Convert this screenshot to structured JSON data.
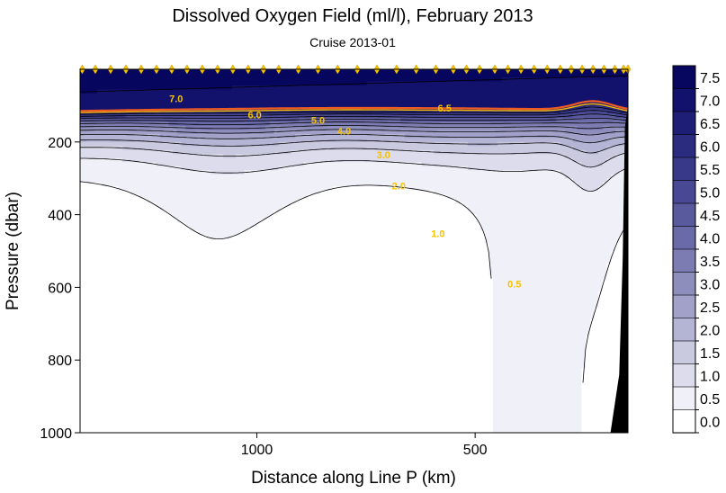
{
  "chart_data": {
    "type": "heatmap",
    "title": "Dissolved Oxygen Field  (ml/l),  February 2013",
    "subtitle": "Cruise 2013-01",
    "xlabel": "Distance along Line P  (km)",
    "ylabel": "Pressure  (dbar)",
    "x_axis": {
      "reversed": true,
      "range": [
        1405,
        150
      ],
      "ticks": [
        1000,
        500
      ]
    },
    "y_axis": {
      "reversed": true,
      "range": [
        0,
        1000
      ],
      "ticks": [
        200,
        400,
        600,
        800,
        1000
      ]
    },
    "levels": [
      0.0,
      0.5,
      1.0,
      1.5,
      2.0,
      2.5,
      3.0,
      3.5,
      4.0,
      4.5,
      5.0,
      5.5,
      6.0,
      6.5,
      7.0,
      7.5
    ],
    "colorbar_labels": [
      "7.5",
      "7.0",
      "6.5",
      "6.0",
      "5.5",
      "5.0",
      "4.5",
      "4.0",
      "3.5",
      "3.0",
      "2.5",
      "2.0",
      "1.5",
      "1.0",
      "0.5",
      "0.0"
    ],
    "band_colors": [
      "#ffffff",
      "#f0f0f8",
      "#dcdcec",
      "#c9c9e0",
      "#b4b4d5",
      "#a1a1c9",
      "#8e8ebd",
      "#7c7cb3",
      "#6a6aa8",
      "#59599e",
      "#484894",
      "#393989",
      "#2b2b80",
      "#1e1e76",
      "#12126c",
      "#07075f"
    ],
    "contour_labels": [
      {
        "text": "7.0",
        "x": 1185,
        "y": 80
      },
      {
        "text": "6.5",
        "x": 570,
        "y": 107
      },
      {
        "text": "6.0",
        "x": 1005,
        "y": 125
      },
      {
        "text": "5.0",
        "x": 860,
        "y": 140
      },
      {
        "text": "4.0",
        "x": 800,
        "y": 170
      },
      {
        "text": "3.0",
        "x": 710,
        "y": 235
      },
      {
        "text": "2.0",
        "x": 675,
        "y": 320
      },
      {
        "text": "1.0",
        "x": 585,
        "y": 452
      },
      {
        "text": "0.5",
        "x": 410,
        "y": 590
      }
    ],
    "highlight_contours": [
      {
        "level": 7.0,
        "color": "#ee5a24"
      },
      {
        "level": 6.5,
        "color": "#f5b800"
      }
    ],
    "stations_km": [
      1400,
      1370,
      1335,
      1300,
      1265,
      1230,
      1195,
      1160,
      1125,
      1090,
      1055,
      1020,
      985,
      950,
      905,
      860,
      815,
      770,
      725,
      680,
      635,
      590,
      550,
      520,
      490,
      455,
      425,
      395,
      365,
      335,
      305,
      280,
      255,
      230,
      205,
      180,
      160,
      150
    ],
    "bathymetry": [
      [
        190,
        1000
      ],
      [
        170,
        840
      ],
      [
        162,
        520
      ],
      [
        157,
        160
      ],
      [
        150,
        100
      ],
      [
        150,
        1000
      ]
    ]
  }
}
